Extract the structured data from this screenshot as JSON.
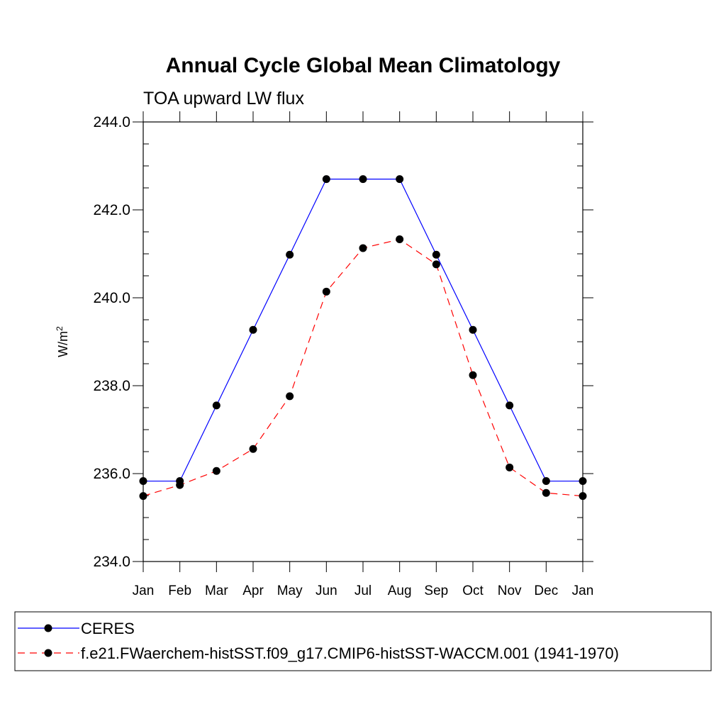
{
  "chart_data": {
    "type": "line",
    "title": "Annual Cycle Global Mean Climatology",
    "subtitle": "TOA upward LW flux",
    "ylabel_base": "W/m",
    "ylabel_sup": "2",
    "categories": [
      "Jan",
      "Feb",
      "Mar",
      "Apr",
      "May",
      "Jun",
      "Jul",
      "Aug",
      "Sep",
      "Oct",
      "Nov",
      "Dec",
      "Jan"
    ],
    "yticks": [
      "234.0",
      "236.0",
      "238.0",
      "240.0",
      "242.0",
      "244.0"
    ],
    "ylim": [
      234,
      244
    ],
    "series": [
      {
        "name": "CERES",
        "color": "#0000ff",
        "dash": "solid",
        "values": [
          235.83,
          235.83,
          237.55,
          239.27,
          240.98,
          242.7,
          242.7,
          242.7,
          240.98,
          239.27,
          237.55,
          235.83,
          235.83
        ]
      },
      {
        "name": "f.e21.FWaerchem-histSST.f09_g17.CMIP6-histSST-WACCM.001 (1941-1970)",
        "color": "#ff0000",
        "dash": "dashed",
        "values": [
          235.49,
          235.74,
          236.06,
          236.56,
          237.76,
          240.14,
          241.13,
          241.33,
          240.76,
          238.24,
          236.14,
          235.56,
          235.49
        ]
      }
    ],
    "legend_placement": "bottom",
    "grid": false
  }
}
